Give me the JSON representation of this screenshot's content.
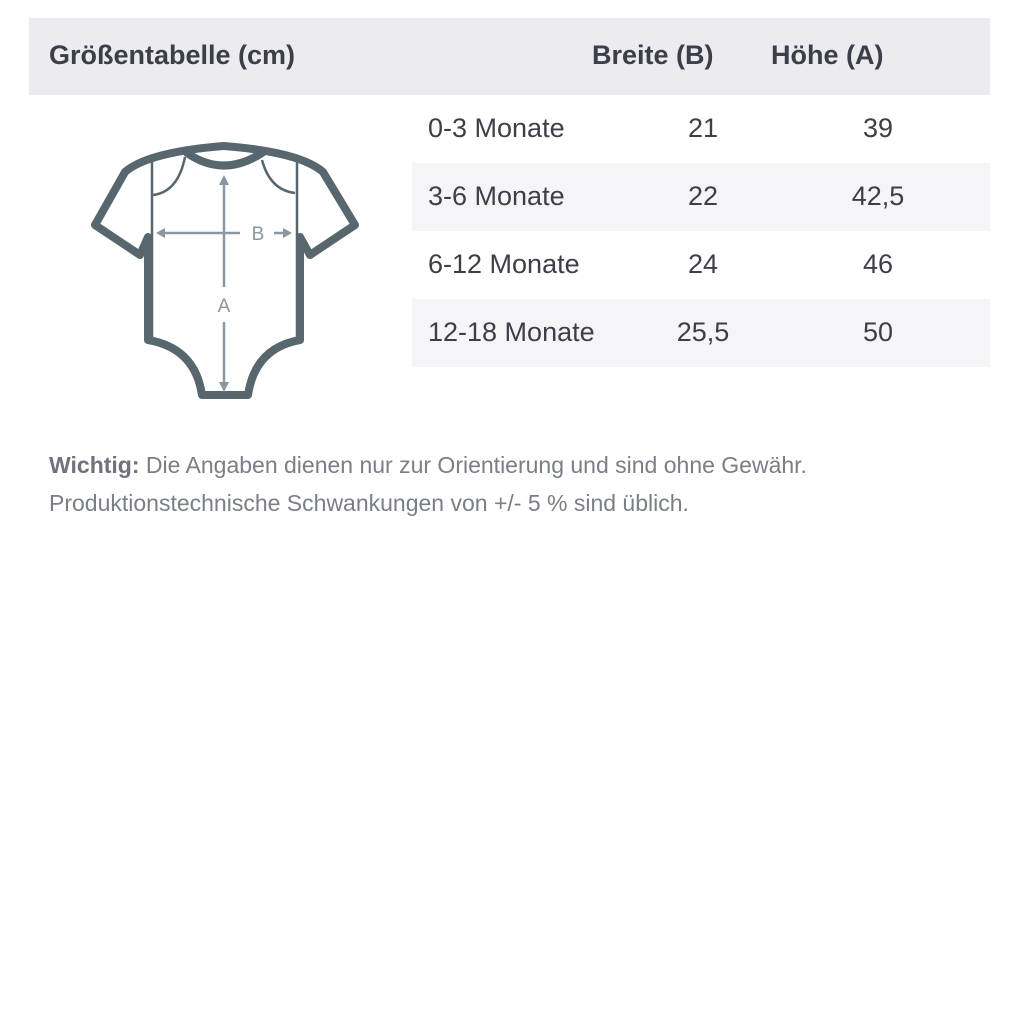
{
  "header": {
    "title": "Größentabelle (cm)",
    "col_width": "Breite (B)",
    "col_height": "Höhe (A)"
  },
  "rows": [
    {
      "size": "0-3 Monate",
      "width": "21",
      "height": "39"
    },
    {
      "size": "3-6 Monate",
      "width": "22",
      "height": "42,5"
    },
    {
      "size": "6-12 Monate",
      "width": "24",
      "height": "46"
    },
    {
      "size": "12-18 Monate",
      "width": "25,5",
      "height": "50"
    }
  ],
  "diagram": {
    "icon": "baby-bodysuit-icon",
    "label_width": "B",
    "label_height": "A",
    "outline_color": "#58666e",
    "arrow_color": "#8a97a0"
  },
  "note": {
    "label": "Wichtig:",
    "line1": "Die Angaben dienen nur zur Orientierung und sind ohne Gewähr.",
    "line2": "Produktionstechnische Schwankungen von +/- 5 % sind üblich."
  }
}
